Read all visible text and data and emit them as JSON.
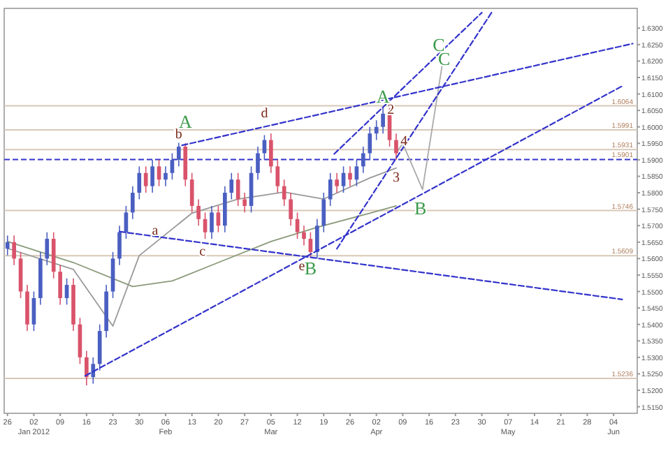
{
  "chart_data": {
    "type": "candlestick",
    "x": [
      "2011-12-26T00:00",
      "2011-12-27T18:00",
      "2011-12-29T12:00",
      "2011-12-31T06:00",
      "2012-01-02T00:00",
      "2012-01-03T18:00",
      "2012-01-05T12:00",
      "2012-01-07T06:00",
      "2012-01-09T00:00",
      "2012-01-10T18:00",
      "2012-01-12T12:00",
      "2012-01-14T06:00",
      "2012-01-16T00:00",
      "2012-01-17T18:00",
      "2012-01-19T12:00",
      "2012-01-21T06:00",
      "2012-01-23T00:00",
      "2012-01-24T18:00",
      "2012-01-26T12:00",
      "2012-01-28T06:00",
      "2012-01-30T00:00",
      "2012-01-31T18:00",
      "2012-02-02T12:00",
      "2012-02-04T06:00",
      "2012-02-06T00:00",
      "2012-02-07T18:00",
      "2012-02-09T12:00",
      "2012-02-11T06:00",
      "2012-02-13T00:00",
      "2012-02-14T18:00",
      "2012-02-16T12:00",
      "2012-02-18T06:00",
      "2012-02-20T00:00",
      "2012-02-21T18:00",
      "2012-02-23T12:00",
      "2012-02-25T06:00",
      "2012-02-27T00:00",
      "2012-02-28T18:00",
      "2012-03-01T12:00",
      "2012-03-03T06:00",
      "2012-03-05T00:00",
      "2012-03-06T18:00",
      "2012-03-08T12:00",
      "2012-03-10T06:00",
      "2012-03-12T00:00",
      "2012-03-13T18:00",
      "2012-03-15T12:00",
      "2012-03-17T06:00",
      "2012-03-19T00:00",
      "2012-03-20T18:00",
      "2012-03-22T12:00",
      "2012-03-24T06:00",
      "2012-03-26T00:00",
      "2012-03-27T18:00",
      "2012-03-29T12:00",
      "2012-03-31T06:00",
      "2012-04-02T00:00",
      "2012-04-03T18:00",
      "2012-04-05T12:00",
      "2012-04-07T06:00"
    ],
    "ohlc": [
      [
        1.563,
        1.567,
        1.561,
        1.565
      ],
      [
        1.565,
        1.567,
        1.558,
        1.56
      ],
      [
        1.56,
        1.562,
        1.548,
        1.55
      ],
      [
        1.55,
        1.552,
        1.538,
        1.54
      ],
      [
        1.54,
        1.55,
        1.538,
        1.548
      ],
      [
        1.548,
        1.562,
        1.546,
        1.56
      ],
      [
        1.56,
        1.568,
        1.558,
        1.566
      ],
      [
        1.566,
        1.568,
        1.554,
        1.556
      ],
      [
        1.556,
        1.558,
        1.546,
        1.548
      ],
      [
        1.548,
        1.554,
        1.546,
        1.552
      ],
      [
        1.552,
        1.554,
        1.538,
        1.54
      ],
      [
        1.54,
        1.542,
        1.528,
        1.53
      ],
      [
        1.53,
        1.532,
        1.5215,
        1.524
      ],
      [
        1.524,
        1.53,
        1.522,
        1.528
      ],
      [
        1.528,
        1.54,
        1.526,
        1.538
      ],
      [
        1.538,
        1.552,
        1.536,
        1.55
      ],
      [
        1.55,
        1.562,
        1.548,
        1.56
      ],
      [
        1.56,
        1.57,
        1.558,
        1.568
      ],
      [
        1.568,
        1.576,
        1.566,
        1.574
      ],
      [
        1.574,
        1.582,
        1.572,
        1.58
      ],
      [
        1.58,
        1.588,
        1.578,
        1.586
      ],
      [
        1.586,
        1.588,
        1.58,
        1.582
      ],
      [
        1.582,
        1.59,
        1.58,
        1.588
      ],
      [
        1.588,
        1.59,
        1.582,
        1.584
      ],
      [
        1.584,
        1.588,
        1.582,
        1.586
      ],
      [
        1.586,
        1.592,
        1.584,
        1.59
      ],
      [
        1.59,
        1.5952,
        1.588,
        1.594
      ],
      [
        1.594,
        1.595,
        1.582,
        1.584
      ],
      [
        1.584,
        1.586,
        1.574,
        1.576
      ],
      [
        1.576,
        1.578,
        1.57,
        1.572
      ],
      [
        1.572,
        1.574,
        1.566,
        1.568
      ],
      [
        1.568,
        1.576,
        1.566,
        1.574
      ],
      [
        1.574,
        1.576,
        1.568,
        1.57
      ],
      [
        1.57,
        1.582,
        1.568,
        1.58
      ],
      [
        1.58,
        1.586,
        1.578,
        1.584
      ],
      [
        1.584,
        1.586,
        1.576,
        1.578
      ],
      [
        1.578,
        1.58,
        1.574,
        1.576
      ],
      [
        1.576,
        1.588,
        1.574,
        1.586
      ],
      [
        1.586,
        1.594,
        1.584,
        1.592
      ],
      [
        1.592,
        1.5975,
        1.59,
        1.596
      ],
      [
        1.596,
        1.598,
        1.586,
        1.588
      ],
      [
        1.588,
        1.59,
        1.58,
        1.582
      ],
      [
        1.582,
        1.584,
        1.576,
        1.578
      ],
      [
        1.578,
        1.58,
        1.57,
        1.572
      ],
      [
        1.572,
        1.574,
        1.566,
        1.568
      ],
      [
        1.568,
        1.57,
        1.564,
        1.566
      ],
      [
        1.566,
        1.568,
        1.5605,
        1.562
      ],
      [
        1.562,
        1.572,
        1.56,
        1.57
      ],
      [
        1.57,
        1.58,
        1.568,
        1.578
      ],
      [
        1.578,
        1.586,
        1.576,
        1.584
      ],
      [
        1.584,
        1.586,
        1.58,
        1.582
      ],
      [
        1.582,
        1.588,
        1.58,
        1.586
      ],
      [
        1.586,
        1.588,
        1.582,
        1.584
      ],
      [
        1.584,
        1.59,
        1.582,
        1.588
      ],
      [
        1.588,
        1.594,
        1.586,
        1.592
      ],
      [
        1.592,
        1.6,
        1.59,
        1.598
      ],
      [
        1.598,
        1.602,
        1.596,
        1.6
      ],
      [
        1.6,
        1.606,
        1.598,
        1.604
      ],
      [
        1.604,
        1.606,
        1.594,
        1.596
      ],
      [
        1.596,
        1.598,
        1.59,
        1.592
      ]
    ],
    "series": [
      {
        "type": "line",
        "color": "#8a9a7a",
        "x": [
          "2011-12-26T00:00",
          "2012-01-12T12:00",
          "2012-01-28T06:00",
          "2012-02-07T18:00",
          "2012-02-20T00:00",
          "2012-03-05T00:00",
          "2012-03-17T06:00",
          "2012-03-31T06:00",
          "2012-04-07T06:00"
        ],
        "values": [
          1.5652,
          1.5588,
          1.5515,
          1.5532,
          1.5588,
          1.5652,
          1.5695,
          1.5738,
          1.576
        ]
      },
      {
        "type": "line",
        "color": "#999999",
        "x": [
          "2011-12-26T00:00",
          "2012-01-12T12:00",
          "2012-01-23T00:00",
          "2012-01-30T00:00",
          "2012-02-13T00:00",
          "2012-02-25T06:00",
          "2012-03-08T12:00",
          "2012-03-19T00:00",
          "2012-03-31T06:00",
          "2012-04-07T06:00"
        ],
        "values": [
          1.5631,
          1.5567,
          1.5395,
          1.5609,
          1.5738,
          1.5781,
          1.5802,
          1.5781,
          1.5845,
          1.5875
        ]
      },
      {
        "type": "line",
        "color": "#aaaaaa",
        "x": [
          "2012-04-07T06:00",
          "2012-04-09T00:00",
          "2012-04-14T06:00",
          "2012-04-19T12:00"
        ],
        "values": [
          1.592,
          1.595,
          1.581,
          1.619
        ]
      },
      {
        "type": "line",
        "color": "#3333cc",
        "line_style": "dashed",
        "x": [
          "2012-02-10T09:00",
          "2012-06-09T02:00"
        ],
        "values": [
          1.5944,
          1.6253
        ]
      },
      {
        "type": "line",
        "color": "#3333cc",
        "line_style": "dashed",
        "x": [
          "2012-01-15T16:00",
          "2012-06-06T07:00"
        ],
        "values": [
          1.5244,
          1.6124
        ]
      },
      {
        "type": "line",
        "color": "#3333cc",
        "line_style": "dashed",
        "x": [
          "2012-01-24T18:00",
          "2012-06-06T07:00"
        ],
        "values": [
          1.5682,
          1.5476
        ]
      },
      {
        "type": "line",
        "color": "#3333cc",
        "line_style": "dashed",
        "x": [
          "2012-03-21T19:00",
          "2012-04-30T00:00"
        ],
        "values": [
          1.5918,
          1.6347
        ]
      },
      {
        "type": "line",
        "color": "#3333cc",
        "line_style": "dashed",
        "x": [
          "2012-03-22T12:00",
          "2012-05-02T14:00"
        ],
        "values": [
          1.563,
          1.6347
        ]
      }
    ],
    "ref_lines": [
      {
        "axis": "y",
        "value": 1.6064,
        "label": "1.6064",
        "color": "#d8c8b8"
      },
      {
        "axis": "y",
        "value": 1.5991,
        "label": "1.5991",
        "color": "#d8c8b8"
      },
      {
        "axis": "y",
        "value": 1.5931,
        "label": "1.5931",
        "color": "#d8c8b8"
      },
      {
        "axis": "y",
        "value": 1.5901,
        "label": "1.5901",
        "color": "#3333cc",
        "line_style": "dashed"
      },
      {
        "axis": "y",
        "value": 1.5746,
        "label": "1.5746",
        "color": "#d8c8b8"
      },
      {
        "axis": "y",
        "value": 1.5609,
        "label": "1.5609",
        "color": "#d8c8b8"
      },
      {
        "axis": "y",
        "value": 1.5236,
        "label": "1.5236",
        "color": "#d8c8b8"
      }
    ],
    "annotations": [
      {
        "text": "A",
        "x": "2012-02-11T06:00",
        "y": 1.5985
      },
      {
        "text": "b",
        "x": "2012-02-09T12:00",
        "y": 1.5952
      },
      {
        "text": "a",
        "x": "2012-02-03T05:00",
        "y": 1.5682
      },
      {
        "text": "c",
        "x": "2012-02-15T19:00",
        "y": 1.5618
      },
      {
        "text": "d",
        "x": "2012-03-03T06:00",
        "y": 1.6017
      },
      {
        "text": "e",
        "x": "2012-03-13T05:00",
        "y": 1.5575
      },
      {
        "text": "B",
        "x": "2012-03-15T12:00",
        "y": 1.5605
      },
      {
        "text": "A",
        "x": "2012-04-03T18:00",
        "y": 1.606
      },
      {
        "text": "2",
        "x": "2012-04-05T20:00",
        "y": 1.605
      },
      {
        "text": "4",
        "x": "2012-04-09T08:00",
        "y": 1.5955
      },
      {
        "text": "3",
        "x": "2012-04-07T06:00",
        "y": 1.5875
      },
      {
        "text": "B",
        "x": "2012-04-13T17:00",
        "y": 1.5746
      },
      {
        "text": "C",
        "x": "2012-04-18T14:00",
        "y": 1.6244
      },
      {
        "text": "C",
        "x": "2012-04-20T00:00",
        "y": 1.62
      }
    ],
    "xlim": [
      "2011-12-25T03:00",
      "2012-06-10T07:00"
    ],
    "xticks": [
      {
        "value": "2011-12-26",
        "label": "26"
      },
      {
        "value": "2012-01-02",
        "label": "02\nJan 2012"
      },
      {
        "value": "2012-01-09",
        "label": "09"
      },
      {
        "value": "2012-01-16",
        "label": "16"
      },
      {
        "value": "2012-01-23",
        "label": "23"
      },
      {
        "value": "2012-01-30",
        "label": "30"
      },
      {
        "value": "2012-02-06",
        "label": "06\nFeb"
      },
      {
        "value": "2012-02-13",
        "label": "13"
      },
      {
        "value": "2012-02-20",
        "label": "20"
      },
      {
        "value": "2012-02-27",
        "label": "27"
      },
      {
        "value": "2012-03-05",
        "label": "05\nMar"
      },
      {
        "value": "2012-03-12",
        "label": "12"
      },
      {
        "value": "2012-03-19",
        "label": "19"
      },
      {
        "value": "2012-03-26",
        "label": "26"
      },
      {
        "value": "2012-04-02",
        "label": "02\nApr"
      },
      {
        "value": "2012-04-09",
        "label": "09"
      },
      {
        "value": "2012-04-16",
        "label": "16"
      },
      {
        "value": "2012-04-23",
        "label": "23"
      },
      {
        "value": "2012-04-30",
        "label": "30"
      },
      {
        "value": "2012-05-07",
        "label": "07\nMay"
      },
      {
        "value": "2012-05-14",
        "label": "14"
      },
      {
        "value": "2012-05-21",
        "label": "21"
      },
      {
        "value": "2012-05-28",
        "label": "28"
      },
      {
        "value": "2012-06-04",
        "label": "04\nJun"
      }
    ],
    "ylim": [
      1.513,
      1.636
    ],
    "yticks": [
      {
        "value": 1.515,
        "label": "1.5150"
      },
      {
        "value": 1.52,
        "label": "1.5200"
      },
      {
        "value": 1.525,
        "label": "1.5250"
      },
      {
        "value": 1.53,
        "label": "1.5300"
      },
      {
        "value": 1.535,
        "label": "1.5350"
      },
      {
        "value": 1.54,
        "label": "1.5400"
      },
      {
        "value": 1.545,
        "label": "1.5450"
      },
      {
        "value": 1.55,
        "label": "1.5500"
      },
      {
        "value": 1.555,
        "label": "1.5550"
      },
      {
        "value": 1.56,
        "label": "1.5600"
      },
      {
        "value": 1.565,
        "label": "1.5650"
      },
      {
        "value": 1.57,
        "label": "1.5700"
      },
      {
        "value": 1.575,
        "label": "1.5750"
      },
      {
        "value": 1.58,
        "label": "1.5800"
      },
      {
        "value": 1.585,
        "label": "1.5850"
      },
      {
        "value": 1.59,
        "label": "1.5900"
      },
      {
        "value": 1.595,
        "label": "1.5950"
      },
      {
        "value": 1.6,
        "label": "1.6000"
      },
      {
        "value": 1.605,
        "label": "1.6050"
      },
      {
        "value": 1.61,
        "label": "1.6100"
      },
      {
        "value": 1.615,
        "label": "1.6150"
      },
      {
        "value": 1.62,
        "label": "1.6200"
      },
      {
        "value": 1.625,
        "label": "1.6250"
      },
      {
        "value": 1.63,
        "label": "1.6300"
      }
    ]
  }
}
